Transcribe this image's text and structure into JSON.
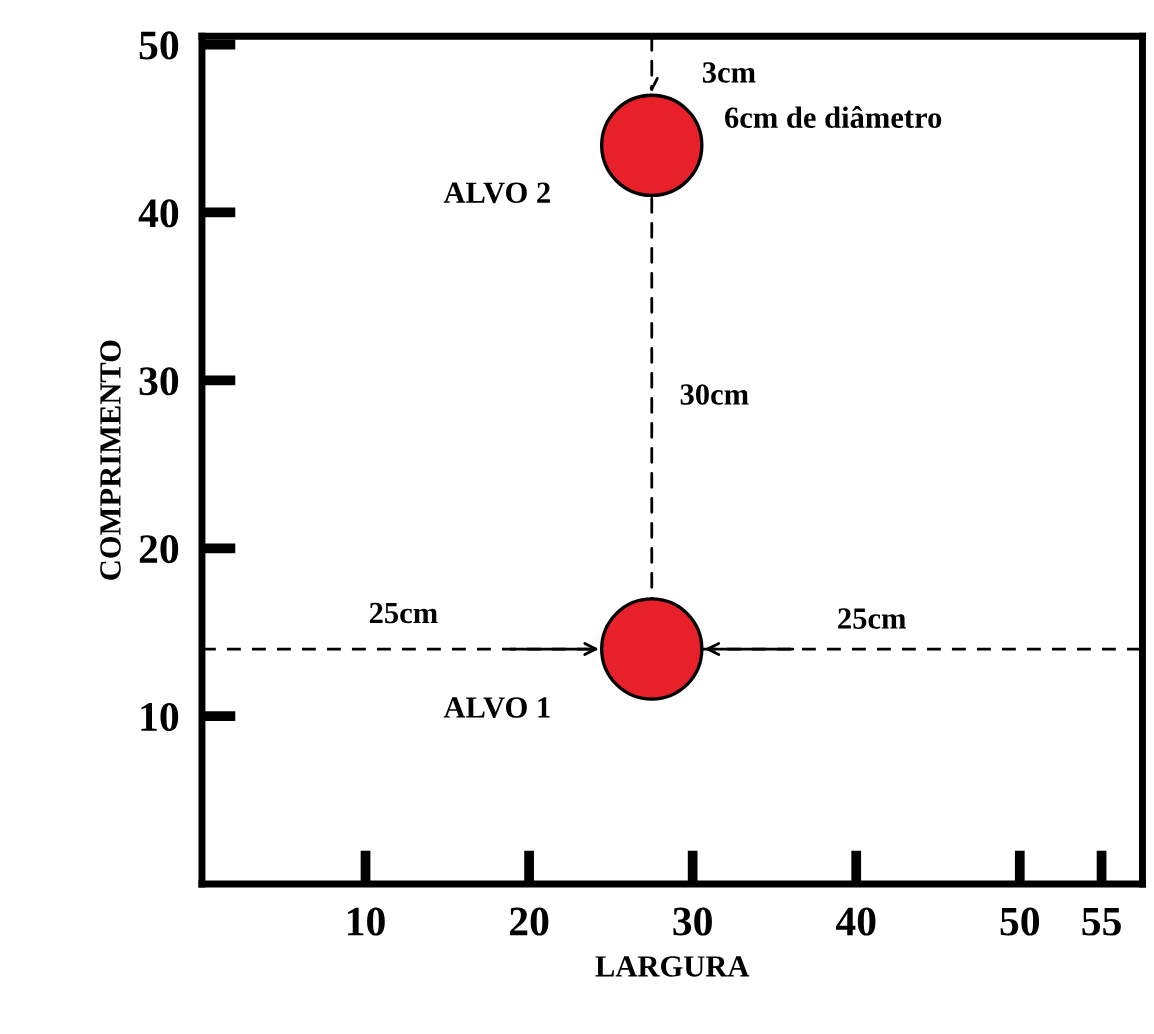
{
  "chart_data": {
    "type": "scatter",
    "xlabel": "LARGURA",
    "ylabel": "COMPRIMENTO",
    "x": [
      27.5,
      27.5
    ],
    "values": [
      14,
      44
    ],
    "color": "#e8202a",
    "marker": "circle",
    "xlim": [
      0,
      57.5
    ],
    "ylim": [
      0,
      50.5
    ],
    "xticks": [
      10,
      20,
      30,
      40,
      50,
      55
    ],
    "yticks": [
      10,
      20,
      30,
      40,
      50
    ],
    "grid": false,
    "ref_lines": [
      {
        "axis": "y",
        "value": 14,
        "color": "#000000",
        "line_style": "dashed"
      }
    ],
    "annotations": [
      "ALVO 1",
      "ALVO 2",
      "6cm de diâmetro",
      "3cm",
      "30cm",
      "25cm",
      "25cm"
    ]
  }
}
